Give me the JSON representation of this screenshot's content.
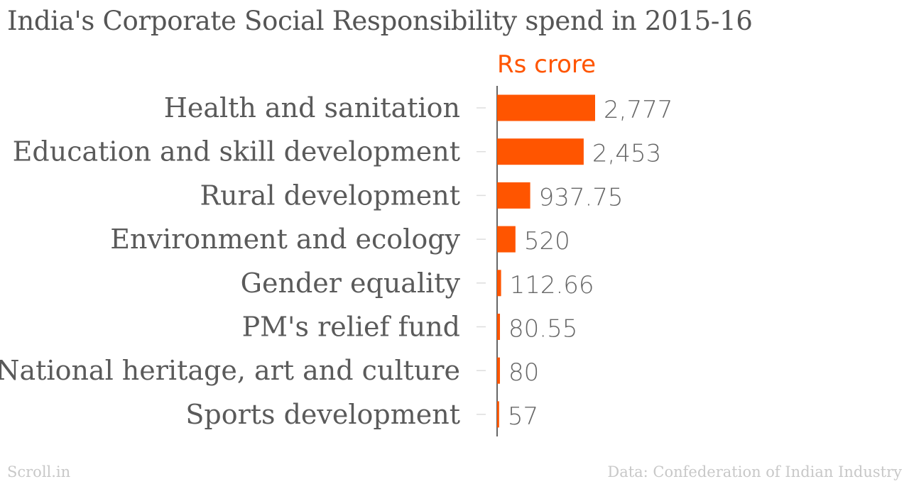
{
  "chart_data": {
    "type": "bar",
    "orientation": "horizontal",
    "title": "India's Corporate Social Responsibility spend in 2015-16",
    "unit_label": "Rs crore",
    "categories": [
      "Health and sanitation",
      "Education and skill development",
      "Rural development",
      "Environment and ecology",
      "Gender equality",
      "PM's relief fund",
      "National heritage, art and culture",
      "Sports development"
    ],
    "values": [
      2777,
      2453,
      937.75,
      520,
      112.66,
      80.55,
      80,
      57
    ],
    "value_labels": [
      "2,777",
      "2,453",
      "937.75",
      "520",
      "112.66",
      "80.55",
      "80",
      "57"
    ],
    "xlim": [
      0,
      2777
    ],
    "grid": false,
    "bar_color": "#ff5500"
  },
  "footer": {
    "credit": "Scroll.in",
    "source": "Data: Confederation of Indian Industry"
  }
}
